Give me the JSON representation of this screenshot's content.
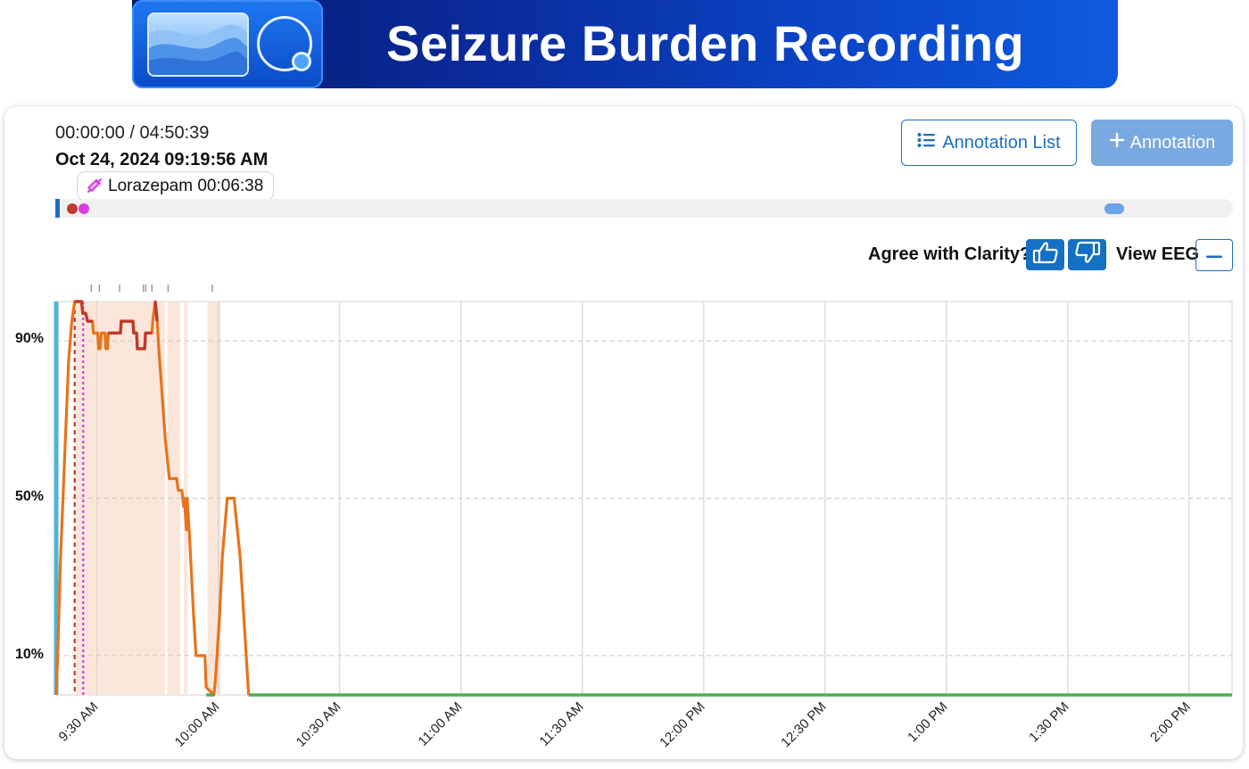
{
  "banner": {
    "title": "Seizure Burden Recording"
  },
  "player": {
    "elapsed": "00:00:00 / 04:50:39",
    "datetime": "Oct 24, 2024 09:19:56 AM"
  },
  "medication_chip": {
    "label": "Lorazepam 00:06:38",
    "icon": "syringe-icon",
    "color": "#d63de0"
  },
  "buttons": {
    "annotation_list": "Annotation List",
    "add_annotation": "Annotation"
  },
  "feedback": {
    "agree_label": "Agree with Clarity?",
    "view_eeg_label": "View EEG"
  },
  "colors": {
    "accent": "#156fc3",
    "burden_high": "#c0392b",
    "burden_line": "#e8731a",
    "baseline": "#4caf50",
    "shading": "#fbe6da",
    "marker_red": "#c0392b",
    "marker_magenta": "#d63de0",
    "start_bar": "#4fb3d1"
  },
  "chart_data": {
    "type": "line",
    "yticks": [
      "10%",
      "50%",
      "90%"
    ],
    "ytick_values": [
      10,
      50,
      90
    ],
    "ylim": [
      0,
      100
    ],
    "xtick_labels": [
      "9:30 AM",
      "10:00 AM",
      "10:30 AM",
      "11:00 AM",
      "11:30 AM",
      "12:00 PM",
      "12:30 PM",
      "1:00 PM",
      "1:30 PM",
      "2:00 PM"
    ],
    "xtick_minutes": [
      30,
      60,
      90,
      120,
      150,
      180,
      210,
      240,
      270,
      300
    ],
    "xlim": [
      19.93,
      310.6
    ],
    "grid": true,
    "series": [
      {
        "role": "burden",
        "points": [
          [
            19.93,
            0
          ],
          [
            20.3,
            10
          ],
          [
            21,
            35
          ],
          [
            22,
            60
          ],
          [
            23,
            85
          ],
          [
            23.8,
            95
          ],
          [
            24.5,
            100
          ],
          [
            26.2,
            100
          ],
          [
            26.5,
            97
          ],
          [
            27.2,
            97
          ],
          [
            27.7,
            95
          ],
          [
            28.9,
            95
          ],
          [
            29.1,
            92
          ],
          [
            30.2,
            92
          ],
          [
            30.4,
            88
          ],
          [
            30.8,
            88
          ],
          [
            31.1,
            92
          ],
          [
            32,
            92
          ],
          [
            32.2,
            88
          ],
          [
            32.6,
            88
          ],
          [
            32.8,
            92
          ],
          [
            35.8,
            92
          ],
          [
            36,
            95
          ],
          [
            38.9,
            95
          ],
          [
            39.1,
            92
          ],
          [
            39.8,
            92
          ],
          [
            40,
            88
          ],
          [
            41.8,
            88
          ],
          [
            42,
            92
          ],
          [
            43.6,
            92
          ],
          [
            43.8,
            95
          ],
          [
            44.4,
            100
          ],
          [
            44.9,
            95
          ],
          [
            45.3,
            88
          ],
          [
            46,
            78
          ],
          [
            46.9,
            65
          ],
          [
            47.9,
            55
          ],
          [
            49.7,
            55
          ],
          [
            50.1,
            52
          ],
          [
            51,
            52
          ],
          [
            51.4,
            48
          ],
          [
            51.6,
            50
          ],
          [
            52.1,
            42
          ],
          [
            52.3,
            50
          ],
          [
            52.9,
            40
          ],
          [
            53.9,
            20
          ],
          [
            54.5,
            10
          ],
          [
            56.7,
            10
          ],
          [
            57,
            2
          ],
          [
            58.9,
            0
          ],
          [
            59.3,
            4
          ],
          [
            60.3,
            20
          ],
          [
            61,
            35
          ],
          [
            62.2,
            50
          ],
          [
            63.9,
            50
          ],
          [
            65.4,
            35
          ],
          [
            67.5,
            0
          ]
        ]
      },
      {
        "role": "baseline",
        "points": [
          [
            67.5,
            0
          ],
          [
            310.6,
            0
          ]
        ]
      }
    ],
    "high_burden_segments": [
      [
        24.5,
        28.9
      ],
      [
        32.8,
        43.6
      ],
      [
        44,
        45
      ]
    ],
    "shaded_bands": [
      [
        24.8,
        46.8
      ],
      [
        47.4,
        50.6
      ],
      [
        51.5,
        52.4
      ],
      [
        57.3,
        60.6
      ]
    ],
    "event_markers": [
      {
        "minute": 24.5,
        "color": "#c0392b",
        "dash": "5,4"
      },
      {
        "minute": 26.6,
        "color": "#d63de0",
        "dash": "3,3"
      }
    ],
    "event_ticks": [
      28.6,
      30.6,
      35.6,
      41.5,
      42.1,
      43.6,
      47.6,
      58.5
    ]
  }
}
